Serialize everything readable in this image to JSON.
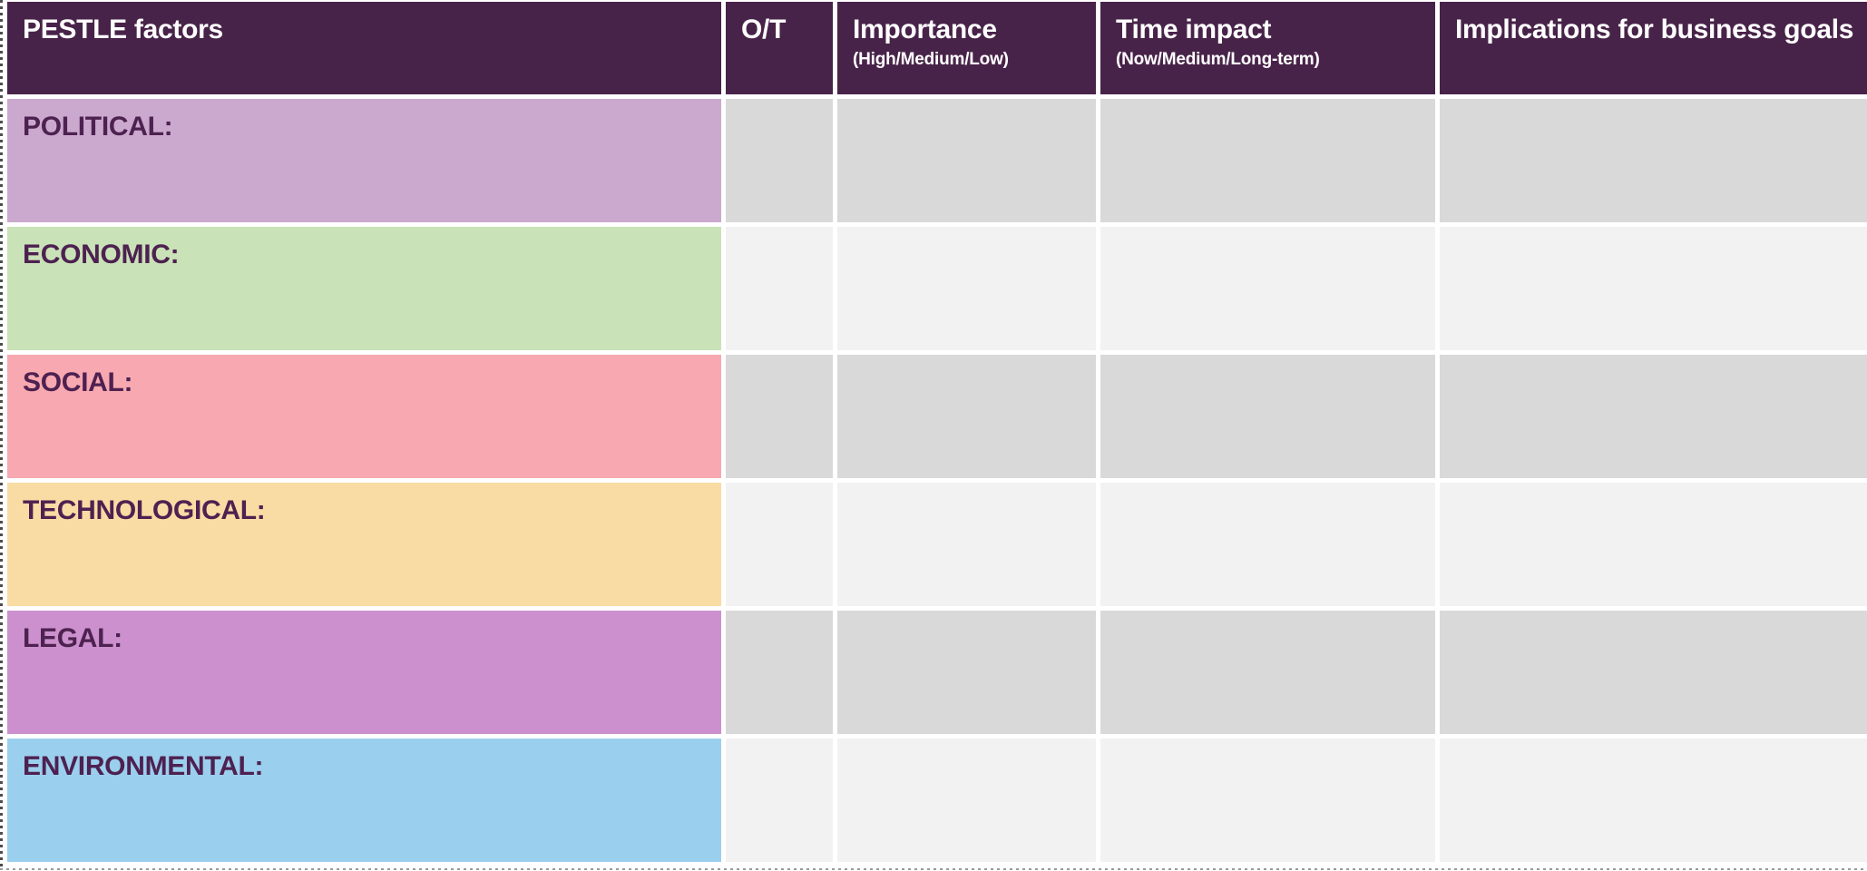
{
  "colors": {
    "header_bg": "#482349",
    "header_text": "#ffffff",
    "label_text": "#4d2150",
    "gray_dark": "#d9d9d9",
    "gray_light": "#f2f2f2",
    "gap_white": "#ffffff",
    "selection_dash": "#4d4d4d"
  },
  "header": {
    "columns": [
      {
        "key": "factors",
        "label": "PESTLE factors",
        "sub": ""
      },
      {
        "key": "ot",
        "label": "O/T",
        "sub": ""
      },
      {
        "key": "importance",
        "label": "Importance",
        "sub": "(High/Medium/Low)"
      },
      {
        "key": "time-impact",
        "label": "Time impact",
        "sub": "(Now/Medium/Long-term)"
      },
      {
        "key": "implications",
        "label": "Implications for business goals",
        "sub": ""
      }
    ]
  },
  "rows": [
    {
      "key": "political",
      "label": "POLITICAL:",
      "bg": "#cba9ce",
      "gray": "#d9d9d9",
      "cells": [
        "",
        "",
        "",
        ""
      ]
    },
    {
      "key": "economic",
      "label": "ECONOMIC:",
      "bg": "#c9e2b8",
      "gray": "#f2f2f2",
      "cells": [
        "",
        "",
        "",
        ""
      ]
    },
    {
      "key": "social",
      "label": "SOCIAL:",
      "bg": "#f7a8b0",
      "gray": "#d9d9d9",
      "cells": [
        "",
        "",
        "",
        ""
      ]
    },
    {
      "key": "technological",
      "label": "TECHNOLOGICAL:",
      "bg": "#f9dba4",
      "gray": "#f2f2f2",
      "cells": [
        "",
        "",
        "",
        ""
      ]
    },
    {
      "key": "legal",
      "label": "LEGAL:",
      "bg": "#cb90cd",
      "gray": "#d9d9d9",
      "cells": [
        "",
        "",
        "",
        ""
      ]
    },
    {
      "key": "environmental",
      "label": "ENVIRONMENTAL:",
      "bg": "#9bcfee",
      "gray": "#f2f2f2",
      "cells": [
        "",
        "",
        "",
        ""
      ]
    }
  ]
}
